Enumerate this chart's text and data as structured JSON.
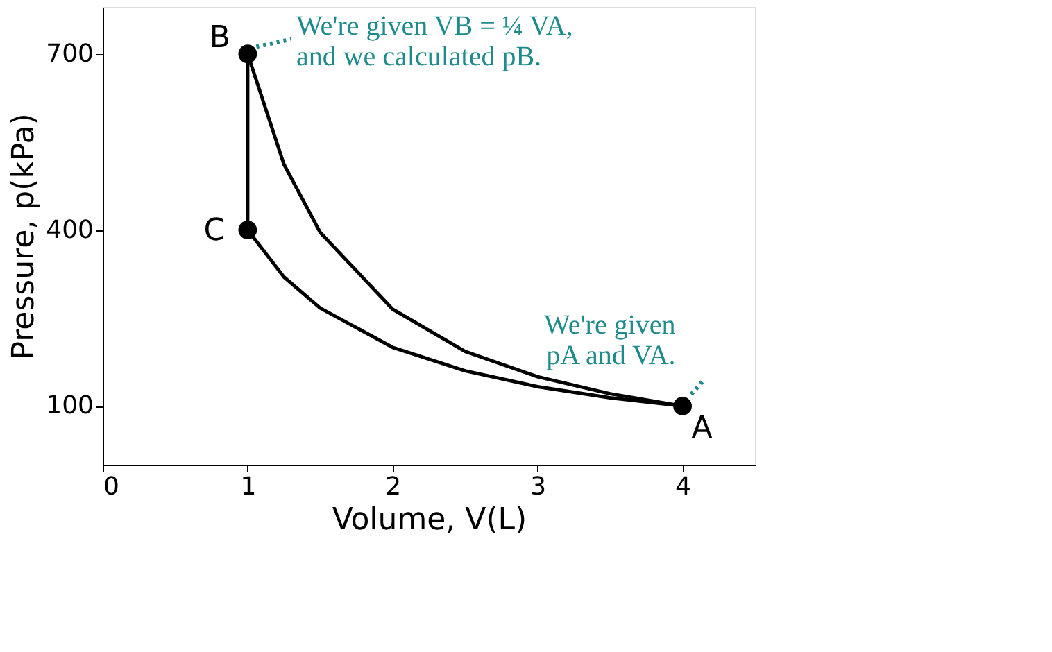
{
  "chart_data": {
    "type": "line",
    "xlabel": "Volume, V(L)",
    "ylabel": "Pressure, p(kPa)",
    "xlim": [
      0,
      4.5
    ],
    "xticks": [
      0,
      1,
      2,
      3,
      4
    ],
    "ylim": [
      0,
      780
    ],
    "yticks": [
      100,
      400,
      700
    ],
    "grid": false,
    "series": [
      {
        "color": "#000000",
        "x": [
          1,
          1.25,
          1.5,
          2,
          2.5,
          3,
          3.5,
          4
        ],
        "values": [
          700,
          512,
          396,
          265,
          193,
          150,
          121,
          100
        ]
      },
      {
        "color": "#000000",
        "x": [
          1,
          1.25,
          1.5,
          2,
          2.5,
          3,
          3.5,
          4
        ],
        "values": [
          400,
          320,
          267,
          200,
          160,
          133,
          114,
          100
        ]
      },
      {
        "color": "#000000",
        "x": [
          1,
          1
        ],
        "values": [
          700,
          400
        ]
      },
      {
        "type": "scatter",
        "color": "#000000",
        "marker": "circle",
        "x": [
          1,
          1,
          4
        ],
        "values": [
          700,
          400,
          100
        ]
      }
    ],
    "annotations": [
      "B",
      "C",
      "A",
      {
        "text": "We're given VB = ¼ VA,\nand we calculated pB.",
        "x": 1,
        "y": 700
      },
      {
        "text": "We're given\npA and VA.",
        "x": 4,
        "y": 100
      }
    ]
  }
}
